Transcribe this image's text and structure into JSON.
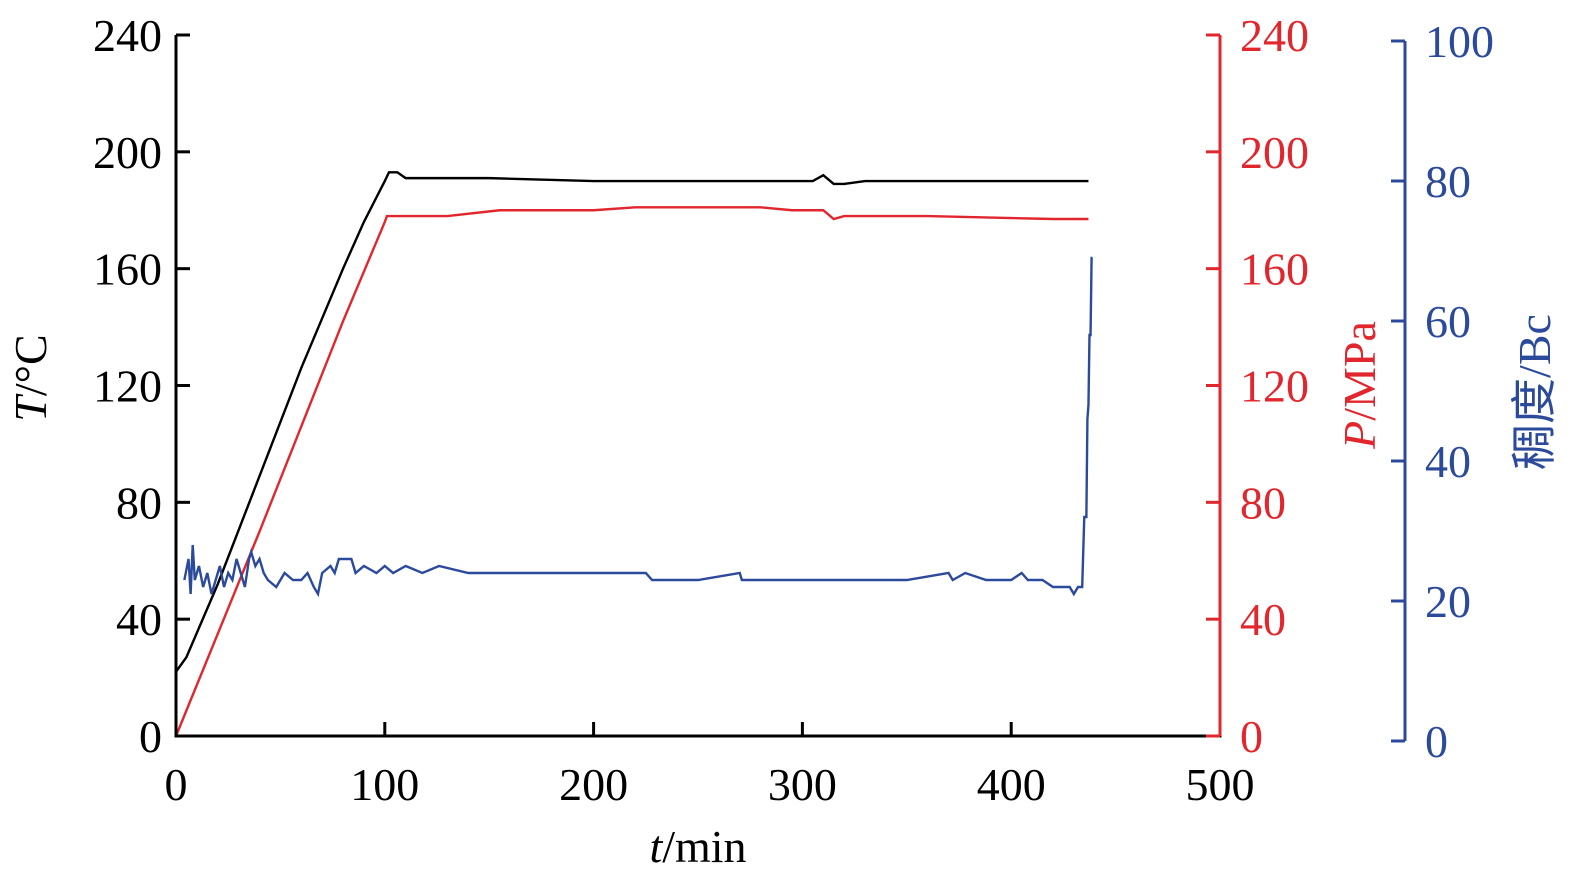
{
  "chart_data": {
    "type": "line",
    "x_axis": {
      "label_italic": "t",
      "label_unit": "/min",
      "range": [
        0,
        500
      ],
      "ticks": [
        "0",
        "100",
        "200",
        "300",
        "400",
        "500"
      ]
    },
    "y_axes": [
      {
        "id": "T",
        "label_italic": "T",
        "label_unit": "/°C",
        "range": [
          0,
          240
        ],
        "ticks": [
          "0",
          "40",
          "80",
          "120",
          "160",
          "200",
          "240"
        ],
        "color": "#000000",
        "side": "left"
      },
      {
        "id": "P",
        "label_italic": "P",
        "label_unit": "/MPa",
        "range": [
          0,
          240
        ],
        "ticks": [
          "0",
          "40",
          "80",
          "120",
          "160",
          "200",
          "240"
        ],
        "color": "#e1262d",
        "side": "right"
      },
      {
        "id": "C",
        "label_italic": "",
        "label_unit": "稠度/Bc",
        "range": [
          0,
          100
        ],
        "ticks": [
          "0",
          "20",
          "40",
          "60",
          "80",
          "100"
        ],
        "color": "#2b4a9b",
        "side": "right-outer"
      }
    ],
    "grid": false,
    "legend": "none",
    "series": [
      {
        "axis": "T",
        "color": "#000000",
        "points": [
          [
            0,
            22
          ],
          [
            5,
            27
          ],
          [
            20,
            52
          ],
          [
            40,
            89
          ],
          [
            60,
            126
          ],
          [
            80,
            160
          ],
          [
            90,
            176
          ],
          [
            100,
            190
          ],
          [
            102,
            193
          ],
          [
            106,
            193
          ],
          [
            110,
            191
          ],
          [
            150,
            191
          ],
          [
            200,
            190
          ],
          [
            245,
            190
          ],
          [
            305,
            190
          ],
          [
            310,
            192
          ],
          [
            315,
            189
          ],
          [
            320,
            189
          ],
          [
            330,
            190
          ],
          [
            437,
            190
          ]
        ]
      },
      {
        "axis": "P",
        "color": "#e1262d",
        "points": [
          [
            0,
            0
          ],
          [
            20,
            35
          ],
          [
            40,
            70
          ],
          [
            60,
            106
          ],
          [
            80,
            142
          ],
          [
            100,
            176
          ],
          [
            101,
            178
          ],
          [
            130,
            178
          ],
          [
            155,
            180
          ],
          [
            200,
            180
          ],
          [
            220,
            181
          ],
          [
            280,
            181
          ],
          [
            295,
            180
          ],
          [
            310,
            180
          ],
          [
            315,
            177
          ],
          [
            320,
            178
          ],
          [
            360,
            178
          ],
          [
            420,
            177
          ],
          [
            437,
            177
          ]
        ]
      },
      {
        "axis": "C",
        "color": "#2b4a9b",
        "points": [
          [
            4,
            23
          ],
          [
            6,
            26
          ],
          [
            7,
            21
          ],
          [
            8,
            28
          ],
          [
            9,
            23
          ],
          [
            11,
            25
          ],
          [
            13,
            22
          ],
          [
            15,
            24
          ],
          [
            17,
            21
          ],
          [
            19,
            23
          ],
          [
            21,
            25
          ],
          [
            23,
            22
          ],
          [
            25,
            24
          ],
          [
            27,
            23
          ],
          [
            29,
            26
          ],
          [
            31,
            24
          ],
          [
            33,
            22
          ],
          [
            35,
            26
          ],
          [
            36,
            27
          ],
          [
            38,
            25
          ],
          [
            40,
            26
          ],
          [
            42,
            24
          ],
          [
            44,
            23
          ],
          [
            48,
            22
          ],
          [
            52,
            24
          ],
          [
            56,
            23
          ],
          [
            60,
            23
          ],
          [
            63,
            24
          ],
          [
            66,
            22
          ],
          [
            68,
            21
          ],
          [
            70,
            24
          ],
          [
            74,
            25
          ],
          [
            76,
            24
          ],
          [
            78,
            26
          ],
          [
            80,
            26
          ],
          [
            84,
            26
          ],
          [
            86,
            24
          ],
          [
            90,
            25
          ],
          [
            96,
            24
          ],
          [
            100,
            25
          ],
          [
            104,
            24
          ],
          [
            110,
            25
          ],
          [
            118,
            24
          ],
          [
            126,
            25
          ],
          [
            140,
            24
          ],
          [
            150,
            24
          ],
          [
            152,
            24
          ],
          [
            170,
            24
          ],
          [
            200,
            24
          ],
          [
            225,
            24
          ],
          [
            228,
            23
          ],
          [
            250,
            23
          ],
          [
            270,
            24
          ],
          [
            271,
            23
          ],
          [
            300,
            23
          ],
          [
            350,
            23
          ],
          [
            370,
            24
          ],
          [
            372,
            23
          ],
          [
            378,
            24
          ],
          [
            388,
            23
          ],
          [
            400,
            23
          ],
          [
            405,
            24
          ],
          [
            408,
            23
          ],
          [
            415,
            23
          ],
          [
            420,
            22
          ],
          [
            428,
            22
          ],
          [
            430,
            21
          ],
          [
            432,
            22
          ],
          [
            434,
            22
          ],
          [
            435,
            32
          ],
          [
            436,
            32
          ],
          [
            436.5,
            46
          ],
          [
            437,
            48
          ],
          [
            437.5,
            58
          ],
          [
            438,
            58
          ],
          [
            438.5,
            69
          ],
          [
            439,
            69
          ]
        ]
      }
    ]
  }
}
